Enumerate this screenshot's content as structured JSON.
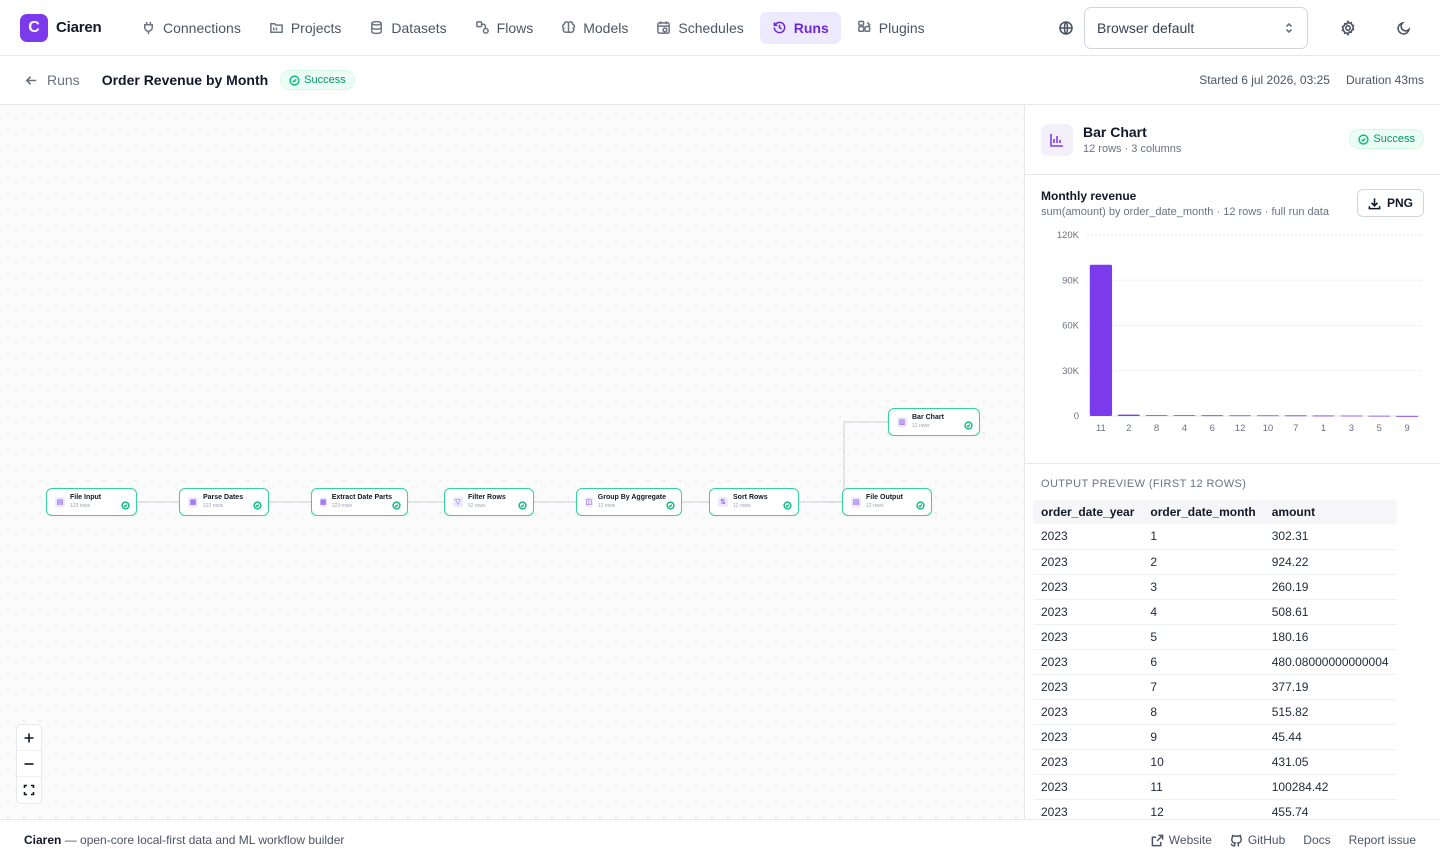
{
  "app": {
    "logo_letter": "C",
    "name": "Ciaren"
  },
  "nav": [
    {
      "label": "Connections",
      "icon": "plug-icon",
      "active": false
    },
    {
      "label": "Projects",
      "icon": "folder-icon",
      "active": false
    },
    {
      "label": "Datasets",
      "icon": "database-icon",
      "active": false
    },
    {
      "label": "Flows",
      "icon": "flow-icon",
      "active": false
    },
    {
      "label": "Models",
      "icon": "brain-icon",
      "active": false
    },
    {
      "label": "Schedules",
      "icon": "calendar-clock-icon",
      "active": false
    },
    {
      "label": "Runs",
      "icon": "history-icon",
      "active": true
    },
    {
      "label": "Plugins",
      "icon": "puzzle-icon",
      "active": false
    }
  ],
  "topbar": {
    "language_value": "Browser default"
  },
  "run": {
    "back_label": "Runs",
    "title": "Order Revenue by Month",
    "status": "Success",
    "started": "Started 6 jul 2026, 03:25",
    "duration": "Duration 43ms"
  },
  "flow_nodes": [
    {
      "name": "File Input",
      "rows": "123 rows",
      "icon": "file-icon"
    },
    {
      "name": "Parse Dates",
      "rows": "123 rows",
      "icon": "calendar-icon"
    },
    {
      "name": "Extract Date Parts",
      "rows": "123 rows",
      "icon": "calendar-icon"
    },
    {
      "name": "Filter Rows",
      "rows": "52 rows",
      "icon": "filter-icon"
    },
    {
      "name": "Group By Aggregate",
      "rows": "12 rows",
      "icon": "group-icon"
    },
    {
      "name": "Sort Rows",
      "rows": "12 rows",
      "icon": "sort-icon"
    },
    {
      "name": "File Output",
      "rows": "12 rows",
      "icon": "file-icon"
    },
    {
      "name": "Bar Chart",
      "rows": "12 rows",
      "icon": "bar-chart-icon"
    }
  ],
  "panel": {
    "title": "Bar Chart",
    "subtitle": "12 rows · 3 columns",
    "status": "Success",
    "chart_title": "Monthly revenue",
    "chart_subtitle": "sum(amount) by order_date_month · 12 rows · full run data",
    "png_label": "PNG",
    "preview_label": "Output preview (first 12 rows)"
  },
  "chart_data": {
    "type": "bar",
    "title": "Monthly revenue",
    "subtitle": "sum(amount) by order_date_month · 12 rows · full run data",
    "categories": [
      "11",
      "2",
      "8",
      "4",
      "6",
      "12",
      "10",
      "7",
      "1",
      "3",
      "5",
      "9"
    ],
    "values": [
      100284.42,
      924.22,
      515.82,
      508.61,
      480.08,
      455.74,
      431.05,
      377.19,
      302.31,
      260.19,
      180.16,
      45.44
    ],
    "ylim": [
      0,
      120000
    ],
    "yticks": [
      "0",
      "30K",
      "60K",
      "90K",
      "120K"
    ],
    "ytick_values": [
      0,
      30000,
      60000,
      90000,
      120000
    ],
    "xlabel": "",
    "ylabel": "",
    "grid": true,
    "colors": {
      "bar": "#7c3aed",
      "grid": "#e5e7eb"
    }
  },
  "table": {
    "columns": [
      "order_date_year",
      "order_date_month",
      "amount"
    ],
    "rows": [
      [
        "2023",
        "1",
        "302.31"
      ],
      [
        "2023",
        "2",
        "924.22"
      ],
      [
        "2023",
        "3",
        "260.19"
      ],
      [
        "2023",
        "4",
        "508.61"
      ],
      [
        "2023",
        "5",
        "180.16"
      ],
      [
        "2023",
        "6",
        "480.08000000000004"
      ],
      [
        "2023",
        "7",
        "377.19"
      ],
      [
        "2023",
        "8",
        "515.82"
      ],
      [
        "2023",
        "9",
        "45.44"
      ],
      [
        "2023",
        "10",
        "431.05"
      ],
      [
        "2023",
        "11",
        "100284.42"
      ],
      [
        "2023",
        "12",
        "455.74"
      ]
    ]
  },
  "footer": {
    "brand": "Ciaren",
    "tagline": " — open-core local-first data and ML workflow builder",
    "links": [
      "Website",
      "GitHub",
      "Docs",
      "Report issue"
    ]
  },
  "colors": {
    "accent": "#7c3aed",
    "success": "#10b981",
    "node_border": "#34d399"
  }
}
